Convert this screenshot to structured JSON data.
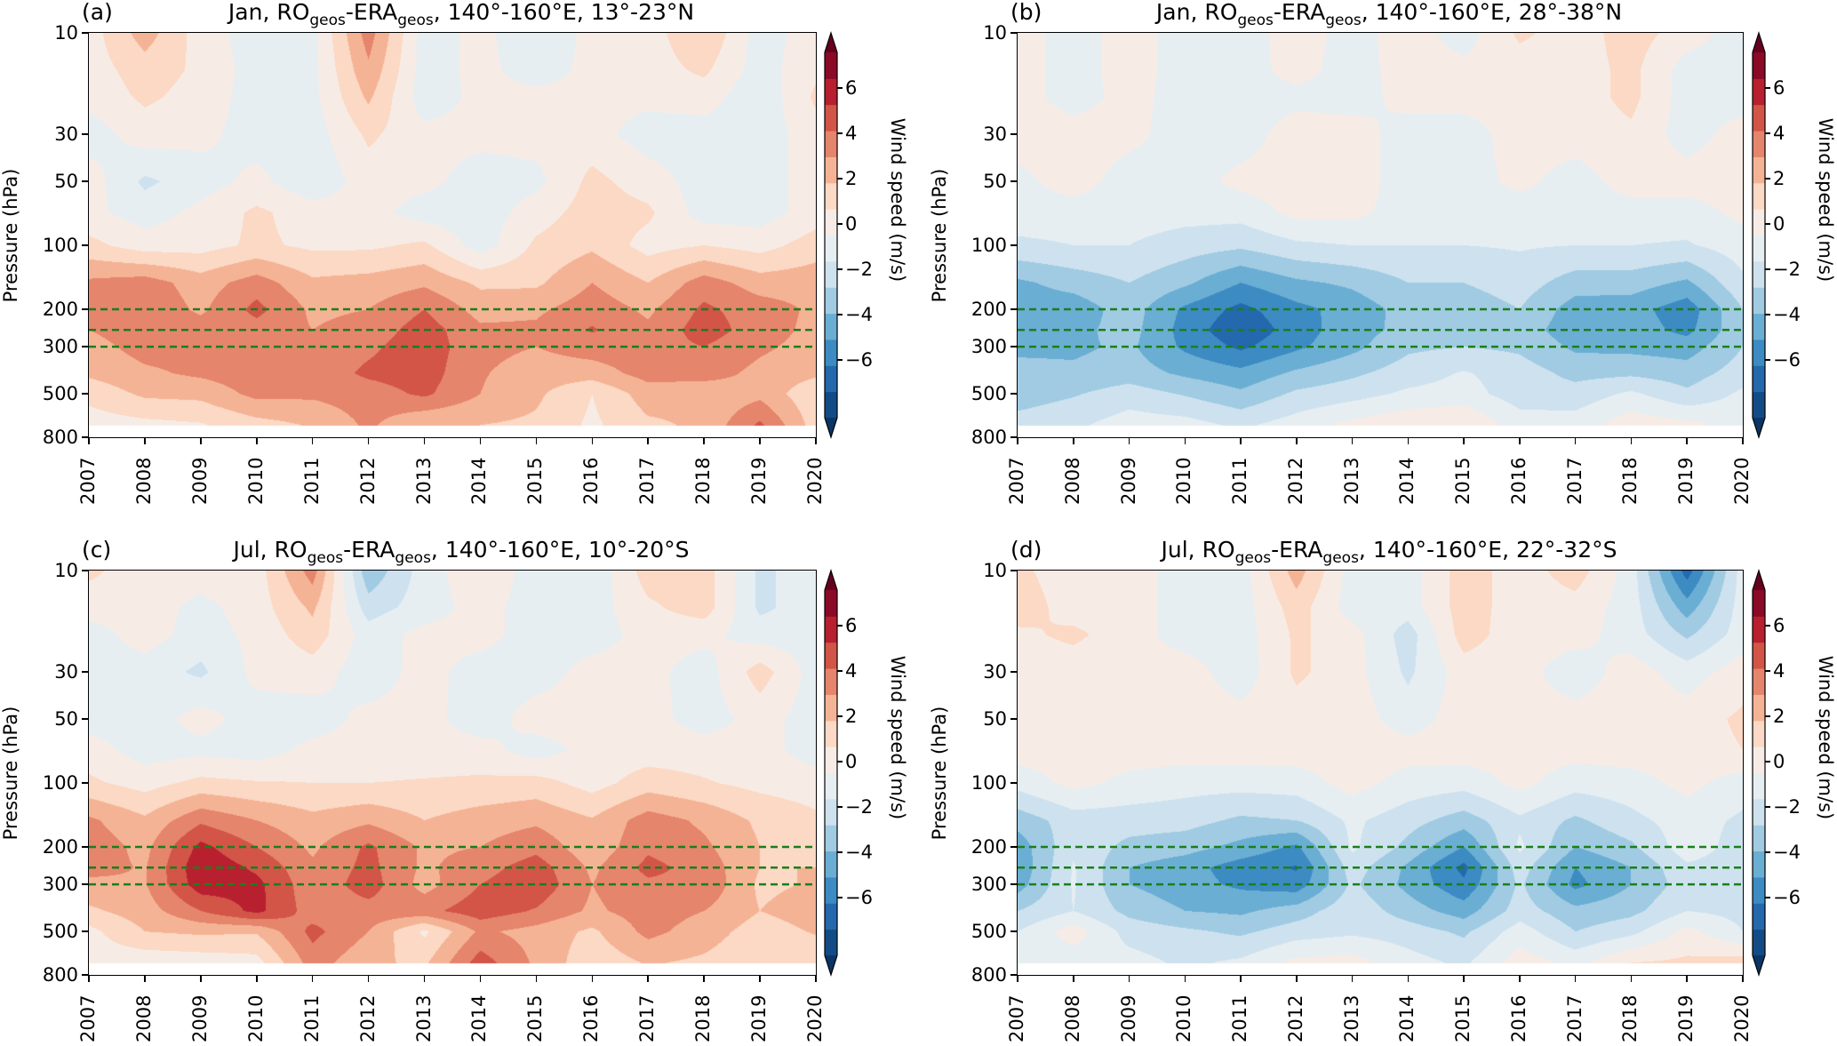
{
  "chart_data": {
    "type": "heatmap",
    "subtype": "filled-contour",
    "colorbar": {
      "label": "Wind speed (m/s)",
      "ticks": [
        "6",
        "4",
        "2",
        "0",
        "−2",
        "−4",
        "−6"
      ],
      "tick_values": [
        6,
        4,
        2,
        0,
        -2,
        -4,
        -6
      ],
      "levels": [
        -7,
        -6,
        -5,
        -4,
        -3,
        -2,
        -1,
        0,
        1,
        2,
        3,
        4,
        5,
        6,
        7
      ],
      "extend": "both",
      "colors": [
        "#134b87",
        "#2468ad",
        "#3c8bc2",
        "#6aaed3",
        "#a1cbe2",
        "#cde2ee",
        "#e6eef2",
        "#f7ece5",
        "#fbd9c5",
        "#f5b395",
        "#e5856b",
        "#d25548",
        "#b8202f",
        "#8b0a26"
      ],
      "arrow_top_color": "#67001f",
      "arrow_bottom_color": "#0b3566"
    },
    "reference_lines_hPa": [
      200,
      250,
      300
    ],
    "reference_line_color": "#1a7f1a",
    "x": [
      2007,
      2008,
      2009,
      2010,
      2011,
      2012,
      2013,
      2014,
      2015,
      2016,
      2017,
      2018,
      2019,
      2020
    ],
    "xticks": [
      "2007",
      "2008",
      "2009",
      "2010",
      "2011",
      "2012",
      "2013",
      "2014",
      "2015",
      "2016",
      "2017",
      "2018",
      "2019",
      "2020"
    ],
    "pressure_levels_hPa": [
      10,
      15,
      20,
      30,
      50,
      70,
      100,
      150,
      200,
      250,
      300,
      400,
      500,
      700
    ],
    "ylabel": "Pressure (hPa)",
    "yticks": [
      "10",
      "30",
      "50",
      "100",
      "200",
      "300",
      "500",
      "800"
    ],
    "ytick_values": [
      10,
      30,
      50,
      100,
      200,
      300,
      500,
      800
    ],
    "ylim": [
      800,
      10
    ],
    "yscale": "log",
    "panels": [
      {
        "label": "(a)",
        "title": [
          "Jan, RO",
          "geos",
          "-ERA",
          "geos",
          ", 140°-160°E, 13°-23°N"
        ],
        "values": [
          [
            0.5,
            2.5,
            0.5,
            -0.5,
            -0.3,
            3.5,
            -0.5,
            0.3,
            -0.8,
            0.3,
            0.5,
            2,
            -0.5,
            0.5
          ],
          [
            0.5,
            1.5,
            0.8,
            -0.5,
            -0.3,
            2.8,
            -0.5,
            0.3,
            -0.5,
            0.3,
            0.5,
            1.2,
            -0.5,
            0.8
          ],
          [
            0.3,
            1.2,
            0.6,
            -0.5,
            -0.3,
            2.2,
            -0.6,
            0.3,
            0.3,
            0.3,
            0.3,
            0.5,
            -0.8,
            1.2
          ],
          [
            -0.5,
            0.5,
            0.3,
            -0.5,
            -0.5,
            1.2,
            0.3,
            0.3,
            0.4,
            0.4,
            -0.5,
            -0.5,
            -0.6,
            0.6
          ],
          [
            0.5,
            -1.2,
            -0.5,
            0.3,
            -0.8,
            0.5,
            0.3,
            -0.5,
            -0.3,
            1.3,
            0.5,
            -0.5,
            -0.5,
            0.5
          ],
          [
            0.3,
            -0.5,
            0.3,
            1.2,
            0.5,
            0.4,
            -0.5,
            -0.6,
            0.5,
            1.5,
            1.2,
            -0.5,
            -0.5,
            0.5
          ],
          [
            1.3,
            0.5,
            0.6,
            1.2,
            0.8,
            0.8,
            1.2,
            -0.5,
            1.2,
            1.8,
            0.6,
            1.0,
            0.6,
            1.5
          ],
          [
            3.2,
            3.5,
            2.5,
            3.5,
            2.2,
            2.4,
            2.8,
            1.8,
            1.8,
            3.0,
            2.0,
            3.5,
            2.5,
            2.6
          ],
          [
            3.2,
            3.8,
            2.8,
            4.3,
            2.8,
            3.0,
            4.0,
            2.6,
            2.8,
            3.6,
            2.8,
            4.2,
            3.5,
            2.8
          ],
          [
            3.0,
            3.6,
            3.5,
            3.6,
            3.0,
            3.4,
            4.5,
            3.2,
            3.2,
            4.1,
            3.2,
            4.5,
            3.5,
            2.7
          ],
          [
            2.6,
            3.4,
            3.4,
            3.6,
            3.3,
            3.8,
            4.6,
            3.3,
            3.0,
            3.5,
            3.6,
            4.0,
            3.2,
            2.6
          ],
          [
            2.2,
            2.8,
            3.2,
            3.6,
            3.4,
            4.2,
            4.5,
            3.1,
            2.5,
            2.5,
            3.4,
            3.5,
            2.7,
            2.2
          ],
          [
            1.3,
            2.2,
            2.3,
            3.3,
            3.2,
            3.5,
            4.2,
            3.0,
            2.2,
            1.0,
            2.5,
            2.2,
            2.7,
            1.2
          ],
          [
            0.5,
            0.7,
            0.9,
            1.6,
            2.1,
            3.2,
            2.0,
            2.0,
            1.8,
            0.8,
            1.8,
            2.2,
            4.2,
            1.5
          ]
        ]
      },
      {
        "label": "(b)",
        "title": [
          "Jan, RO",
          "geos",
          "-ERA",
          "geos",
          ", 140°-160°E, 28°-38°N"
        ],
        "values": [
          [
            0.5,
            -0.5,
            0.5,
            -0.5,
            -0.5,
            0.5,
            -0.4,
            0.5,
            -0.5,
            1.2,
            0.5,
            1.5,
            0.5,
            -0.5
          ],
          [
            0.5,
            -0.5,
            0.5,
            -0.5,
            -0.5,
            0.4,
            -0.5,
            0.5,
            0.3,
            0.5,
            0.5,
            1.3,
            -0.5,
            -0.5
          ],
          [
            0.5,
            -0.5,
            0.4,
            -0.5,
            -0.5,
            -0.3,
            -0.5,
            0.4,
            0.4,
            0.5,
            0.5,
            1.3,
            -0.5,
            -0.5
          ],
          [
            0.5,
            0.5,
            0.3,
            -0.5,
            -0.5,
            0.5,
            0.5,
            -0.5,
            -0.5,
            0.5,
            0.5,
            0.8,
            -0.5,
            0.5
          ],
          [
            -0.3,
            0.5,
            -0.5,
            -0.5,
            0.3,
            0.5,
            0.5,
            -0.5,
            -0.5,
            0.3,
            -0.5,
            0.5,
            0.5,
            0.6
          ],
          [
            -0.5,
            -0.5,
            -0.5,
            -0.6,
            -0.6,
            0.3,
            0.3,
            -0.5,
            -0.5,
            -0.6,
            -0.5,
            -0.5,
            -0.5,
            0.3
          ],
          [
            -1.2,
            -1.0,
            -1.0,
            -1.5,
            -1.8,
            -1.2,
            -1.0,
            -1.0,
            -1.0,
            -0.9,
            -1.0,
            -1.0,
            -1.1,
            -0.5
          ],
          [
            -3.2,
            -2.6,
            -2.0,
            -2.8,
            -4.0,
            -3.2,
            -2.8,
            -2.0,
            -2.0,
            -1.5,
            -2.5,
            -2.5,
            -3.2,
            -1.2
          ],
          [
            -3.6,
            -3.6,
            -2.5,
            -4.2,
            -5.3,
            -4.3,
            -3.6,
            -2.6,
            -2.6,
            -2.0,
            -3.5,
            -3.6,
            -4.6,
            -2.0
          ],
          [
            -3.6,
            -3.3,
            -2.6,
            -4.4,
            -5.8,
            -4.5,
            -3.4,
            -2.7,
            -2.6,
            -2.5,
            -3.6,
            -3.5,
            -4.3,
            -2.2
          ],
          [
            -3.2,
            -3.2,
            -2.8,
            -4.2,
            -5.2,
            -4.2,
            -3.3,
            -2.2,
            -2.0,
            -2.2,
            -3.2,
            -3.3,
            -3.5,
            -2.0
          ],
          [
            -2.7,
            -2.8,
            -2.5,
            -3.2,
            -3.7,
            -2.8,
            -2.2,
            -1.5,
            -0.9,
            -1.5,
            -2.3,
            -2.2,
            -2.5,
            -1.5
          ],
          [
            -2.5,
            -2.1,
            -1.5,
            -2.1,
            -2.8,
            -1.8,
            -1.4,
            -0.8,
            -0.6,
            -1.5,
            -1.6,
            -0.8,
            -1.8,
            -0.8
          ],
          [
            -1.6,
            -1.2,
            -0.5,
            -0.6,
            -1.2,
            -0.5,
            0.3,
            0.8,
            1.0,
            -0.5,
            -0.5,
            0.6,
            0.3,
            -0.4
          ]
        ]
      },
      {
        "label": "(c)",
        "title": [
          "Jul, RO",
          "geos",
          "-ERA",
          "geos",
          ", 140°-160°E, 10°-20°S"
        ],
        "values": [
          [
            1.2,
            0.5,
            0.5,
            0.5,
            3.5,
            -2.8,
            -0.5,
            0.8,
            -0.5,
            -0.8,
            1.5,
            1.5,
            -1.2,
            -0.5
          ],
          [
            0.5,
            0.5,
            -0.3,
            0.5,
            2.2,
            -1.5,
            -0.5,
            0.4,
            -0.5,
            -0.5,
            0.8,
            1.5,
            -1.2,
            -0.5
          ],
          [
            -0.5,
            0.5,
            -0.5,
            0.3,
            1.6,
            -0.5,
            0.3,
            0.4,
            -0.5,
            -0.5,
            0.4,
            0.3,
            -0.5,
            -0.5
          ],
          [
            -0.5,
            -0.5,
            -1.2,
            0.3,
            0.5,
            -0.6,
            0.4,
            -0.5,
            -0.5,
            0.4,
            0.3,
            -0.5,
            1.5,
            -0.5
          ],
          [
            -0.5,
            -0.5,
            0.4,
            -0.5,
            -0.5,
            0.3,
            0.4,
            -0.6,
            0.5,
            0.4,
            0.4,
            -0.5,
            0.4,
            -0.5
          ],
          [
            0.5,
            -0.5,
            -0.3,
            -0.5,
            0.3,
            0.4,
            0.4,
            0.4,
            -0.5,
            0.4,
            0.5,
            0.5,
            0.4,
            -0.5
          ],
          [
            1.2,
            0.6,
            1.3,
            1.1,
            1.0,
            1.0,
            1.1,
            1.2,
            1.4,
            0.6,
            1.5,
            1.1,
            0.7,
            0.5
          ],
          [
            3.2,
            2.2,
            3.8,
            3.0,
            2.3,
            2.8,
            2.0,
            2.5,
            2.8,
            2.1,
            3.5,
            2.8,
            1.8,
            1.2
          ],
          [
            3.6,
            2.7,
            5.3,
            4.0,
            2.8,
            4.2,
            2.8,
            3.0,
            3.7,
            2.3,
            3.8,
            3.2,
            2.0,
            1.8
          ],
          [
            3.4,
            2.9,
            5.8,
            4.8,
            3.2,
            4.3,
            2.8,
            3.6,
            4.5,
            2.8,
            4.3,
            3.6,
            2.0,
            2.0
          ],
          [
            2.7,
            2.9,
            5.6,
            5.3,
            3.3,
            4.5,
            2.6,
            4.0,
            4.7,
            3.0,
            3.8,
            3.8,
            1.8,
            2.1
          ],
          [
            1.8,
            2.5,
            4.0,
            5.3,
            3.5,
            3.6,
            3.7,
            4.6,
            3.9,
            2.8,
            3.5,
            3.0,
            2.0,
            2.5
          ],
          [
            0.7,
            2.0,
            2.2,
            2.1,
            4.3,
            3.0,
            0.8,
            3.2,
            2.6,
            1.8,
            3.3,
            2.5,
            1.5,
            2.1
          ],
          [
            0.5,
            0.3,
            0.4,
            0.6,
            3.5,
            2.2,
            1.8,
            4.5,
            2.8,
            1.3,
            2.1,
            1.8,
            1.2,
            1.2
          ]
        ]
      },
      {
        "label": "(d)",
        "title": [
          "Jul, RO",
          "geos",
          "-ERA",
          "geos",
          ", 140°-160°E, 22°-32°S"
        ],
        "values": [
          [
            1.2,
            0.5,
            0.5,
            -0.5,
            -0.5,
            2.5,
            -0.5,
            -0.5,
            1.5,
            0.5,
            1.5,
            -0.5,
            -5.5,
            -0.5
          ],
          [
            1.5,
            0.6,
            0.5,
            -0.5,
            -0.5,
            1.5,
            -0.5,
            -0.5,
            1.5,
            0.5,
            0.6,
            -0.5,
            -3.5,
            -0.5
          ],
          [
            0.8,
            1.2,
            0.5,
            -0.5,
            -0.5,
            1.2,
            0.4,
            -1.5,
            1.5,
            0.4,
            0.4,
            -0.5,
            -2.2,
            -0.5
          ],
          [
            0.5,
            0.5,
            0.4,
            0.5,
            -0.6,
            1.2,
            0.4,
            -1.2,
            0.5,
            0.4,
            -0.6,
            0.5,
            -0.5,
            0.5
          ],
          [
            0.5,
            0.5,
            0.5,
            0.5,
            0.4,
            0.5,
            0.5,
            -0.5,
            0.5,
            0.4,
            0.4,
            0.5,
            0.5,
            1.2
          ],
          [
            0.5,
            0.5,
            0.5,
            0.5,
            0.5,
            0.5,
            0.5,
            0.4,
            0.5,
            0.4,
            0.4,
            0.5,
            0.5,
            1.0
          ],
          [
            -0.6,
            0.3,
            -0.3,
            -0.6,
            -0.6,
            -0.5,
            0.4,
            -0.4,
            -0.6,
            0.3,
            -0.6,
            -0.4,
            0.3,
            -0.5
          ],
          [
            -2.6,
            -1.5,
            -1.5,
            -1.6,
            -2.2,
            -2.0,
            -0.8,
            -1.6,
            -2.5,
            -1.2,
            -2.2,
            -1.3,
            -0.5,
            -1.2
          ],
          [
            -3.6,
            -1.2,
            -2.3,
            -2.6,
            -3.3,
            -4.2,
            -0.8,
            -2.3,
            -4.0,
            -0.8,
            -3.0,
            -2.2,
            -0.4,
            -1.5
          ],
          [
            -3.8,
            -0.9,
            -3.0,
            -3.6,
            -4.5,
            -5.1,
            -1.5,
            -3.2,
            -5.3,
            -1.5,
            -4.0,
            -3.0,
            -1.2,
            -1.5
          ],
          [
            -3.5,
            -0.9,
            -3.0,
            -3.6,
            -4.2,
            -4.6,
            -1.8,
            -3.3,
            -4.8,
            -1.8,
            -4.3,
            -3.0,
            -1.5,
            -1.8
          ],
          [
            -2.0,
            -1.0,
            -2.3,
            -3.0,
            -3.2,
            -2.5,
            -1.3,
            -2.5,
            -3.5,
            -1.5,
            -2.7,
            -2.3,
            -1.0,
            -1.3
          ],
          [
            -1.0,
            0.5,
            -1.4,
            -1.8,
            -2.2,
            -1.5,
            -1.2,
            -1.5,
            -2.2,
            -0.5,
            -2.0,
            -1.3,
            0.3,
            -1.0
          ],
          [
            -0.6,
            -0.6,
            -0.6,
            -1.2,
            -0.8,
            0.3,
            0.4,
            -0.6,
            -1.2,
            0.5,
            -0.3,
            1.0,
            1.2,
            1.5
          ]
        ]
      }
    ]
  }
}
